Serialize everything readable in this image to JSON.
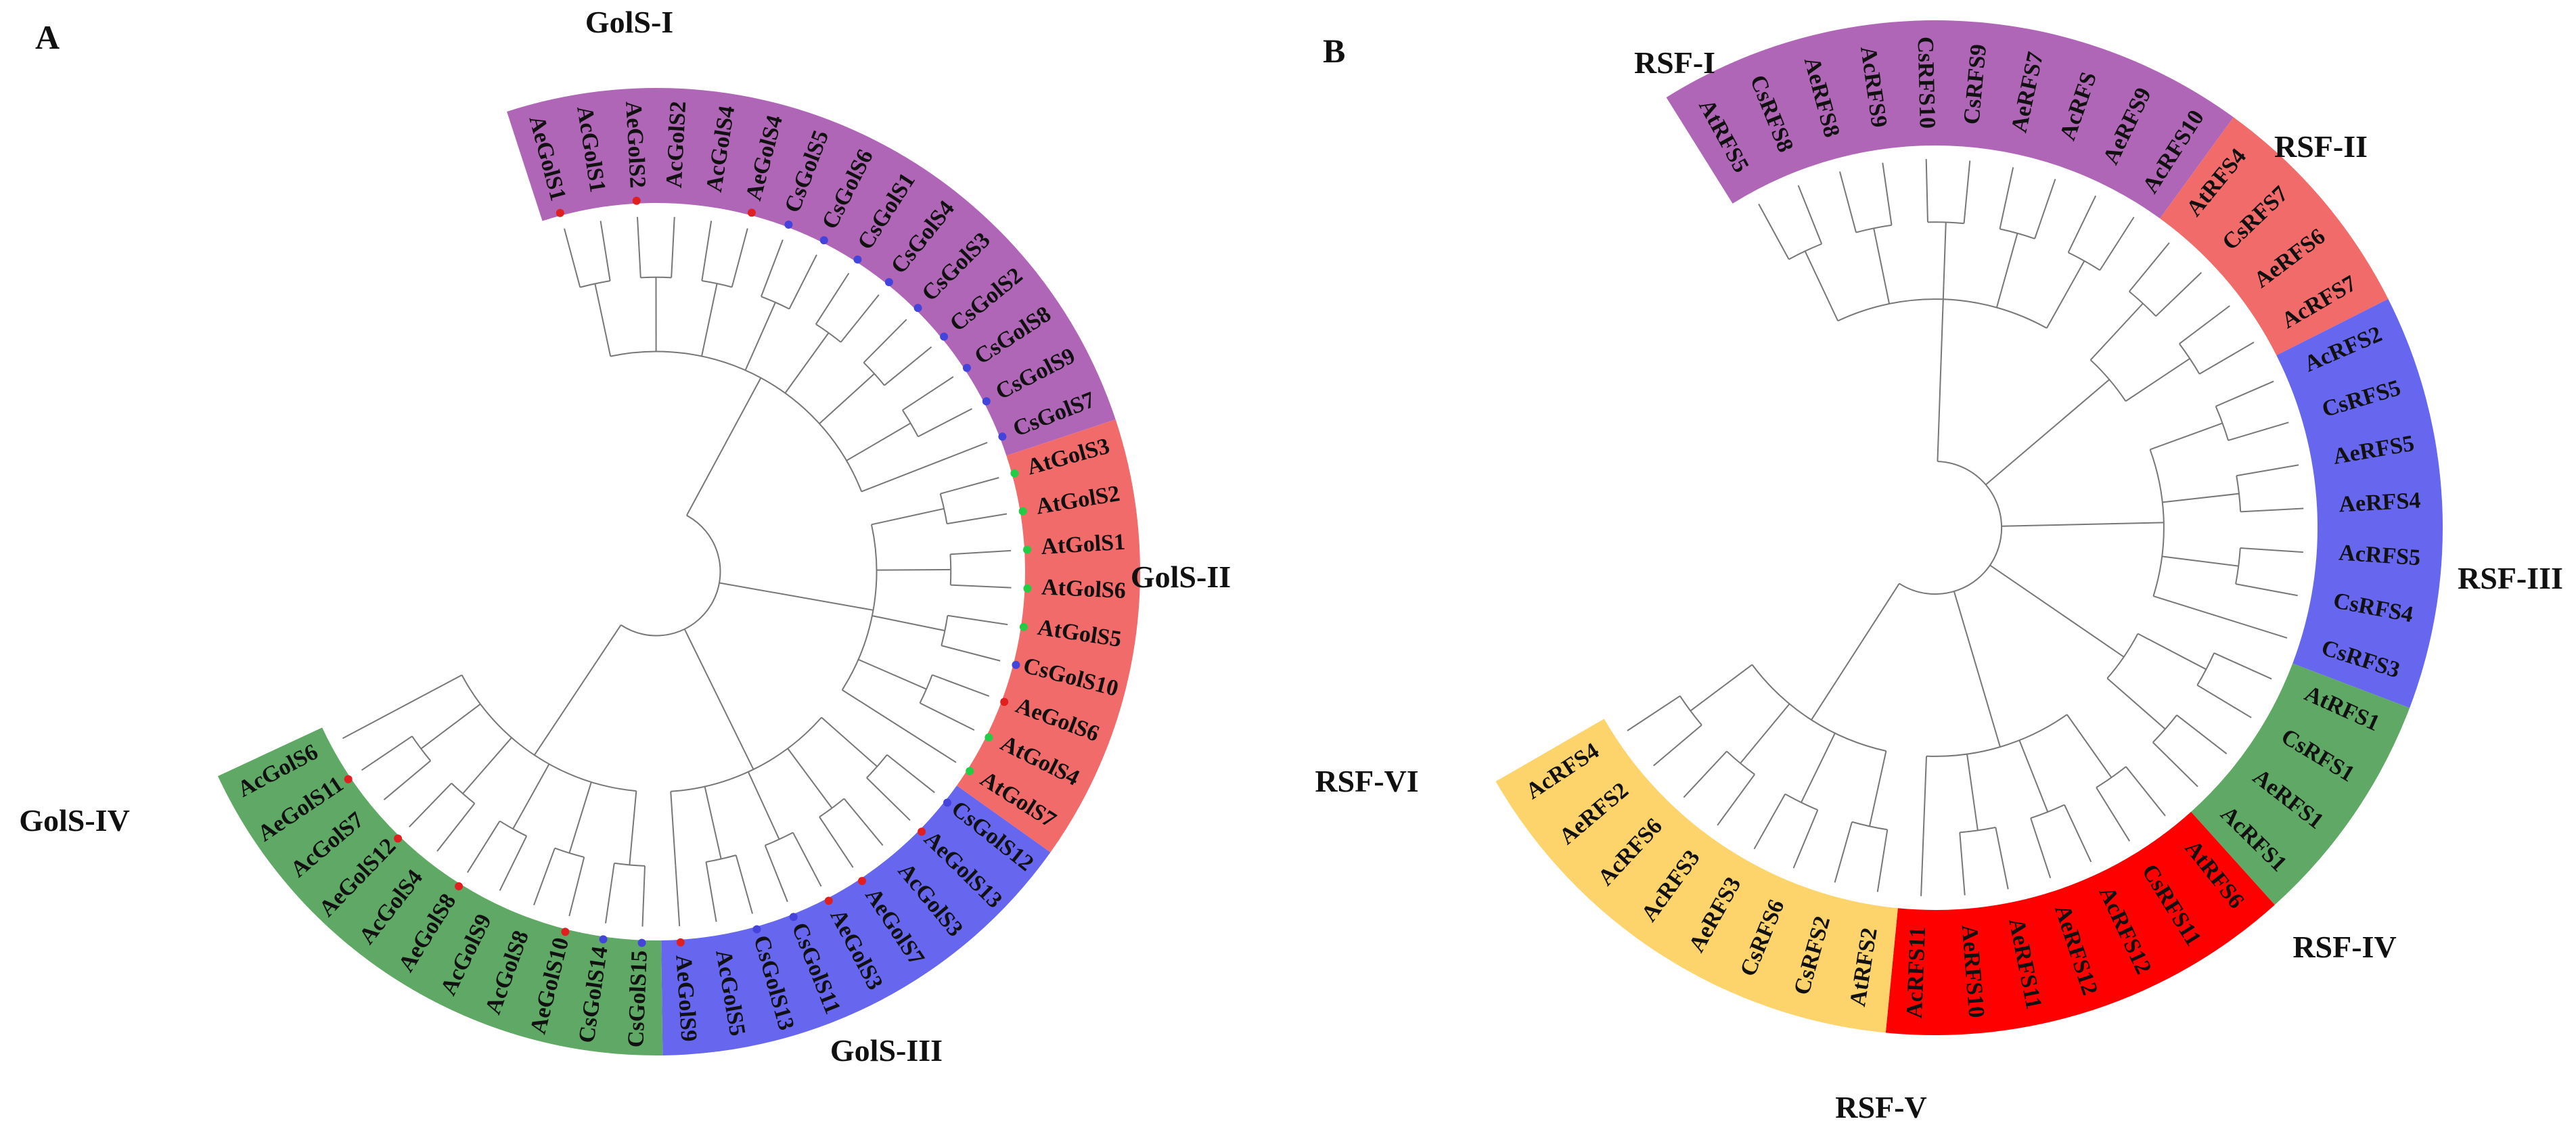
{
  "figure": {
    "type": "circular-phylogenetic-trees",
    "panels": [
      {
        "id": "A",
        "label": "A",
        "groups": [
          {
            "name": "GolS-I",
            "color": "#b066b6",
            "leaves": [
              "AeGolS1",
              "AcGolS1",
              "AeGolS2",
              "AcGolS2",
              "AcGolS4",
              "AeGolS4",
              "CsGolS5",
              "CsGolS6",
              "CsGolS1",
              "CsGolS4",
              "CsGolS3",
              "CsGolS2",
              "CsGolS8",
              "CsGolS9",
              "CsGolS7"
            ]
          },
          {
            "name": "GolS-II",
            "color": "#f26b6b",
            "leaves": [
              "AtGolS3",
              "AtGolS2",
              "AtGolS1",
              "AtGolS6",
              "AtGolS5",
              "CsGolS10",
              "AeGolS6",
              "AtGolS4",
              "AtGolS7"
            ]
          },
          {
            "name": "GolS-III",
            "color": "#6666ee",
            "leaves": [
              "CsGolS12",
              "AeGolS13",
              "AcGolS3",
              "AeGolS7",
              "AeGolS3",
              "CsGolS11",
              "CsGolS13",
              "AcGolS5",
              "AeGolS9"
            ]
          },
          {
            "name": "GolS-IV",
            "color": "#5fa865",
            "leaves": [
              "CsGolS15",
              "CsGolS14",
              "AeGolS10",
              "AcGolS8",
              "AcGolS9",
              "AeGolS8",
              "AcGolS4",
              "AeGolS12",
              "AcGolS7",
              "AeGolS11",
              "AcGolS6"
            ]
          }
        ]
      },
      {
        "id": "B",
        "label": "B",
        "groups": [
          {
            "name": "RSF-I",
            "color": "#b066b6",
            "leaves": [
              "AtRFS5",
              "CsRFS8",
              "AeRFS8",
              "AcRFS9",
              "CsRFS10",
              "CsRFS9",
              "AeRFS7",
              "AcRFS",
              "AeRFS9",
              "AcRFS10"
            ]
          },
          {
            "name": "RSF-II",
            "color": "#f26b6b",
            "leaves": [
              "AtRFS4",
              "CsRFS7",
              "AeRFS6",
              "AcRFS7"
            ]
          },
          {
            "name": "RSF-III",
            "color": "#6666ee",
            "leaves": [
              "AcRFS2",
              "CsRFS5",
              "AeRFS5",
              "AeRFS4",
              "AcRFS5",
              "CsRFS4",
              "CsRFS3"
            ]
          },
          {
            "name": "RSF-IV",
            "color": "#5fa865",
            "leaves": [
              "AtRFS1",
              "CsRFS1",
              "AeRFS1",
              "AcRFS1"
            ]
          },
          {
            "name": "RSF-V",
            "color": "#ff0000",
            "leaves": [
              "AtRFS6",
              "CsRFS11",
              "AcRFS12",
              "AeRFS12",
              "AeRFS11",
              "AeRFS10",
              "AcRFS11"
            ]
          },
          {
            "name": "RSF-VI",
            "color": "#fdd46c",
            "leaves": [
              "AtRFS2",
              "CsRFS2",
              "CsRFS6",
              "AeRFS3",
              "AcRFS3",
              "AcRFS6",
              "AeRFS2",
              "AcRFS4"
            ]
          }
        ]
      }
    ]
  }
}
